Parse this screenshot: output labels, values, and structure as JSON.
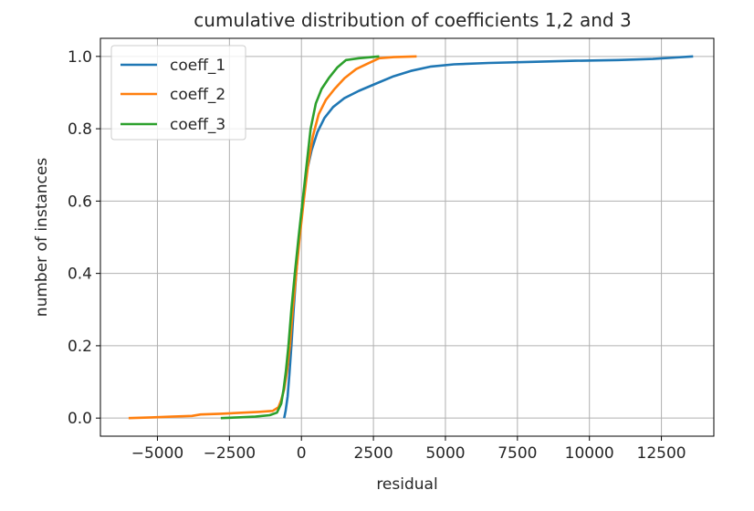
{
  "chart_data": {
    "type": "line",
    "title": "cumulative distribution of coefficients 1,2 and 3",
    "xlabel": "residual",
    "ylabel": "number of instances",
    "xlim": [
      -6980,
      14320
    ],
    "ylim": [
      -0.05,
      1.05
    ],
    "xticks": [
      -5000,
      -2500,
      0,
      2500,
      5000,
      7500,
      10000,
      12500
    ],
    "xtick_labels": [
      "−5000",
      "−2500",
      "0",
      "2500",
      "5000",
      "7500",
      "10000",
      "12500"
    ],
    "yticks": [
      0.0,
      0.2,
      0.4,
      0.6,
      0.8,
      1.0
    ],
    "ytick_labels": [
      "0.0",
      "0.2",
      "0.4",
      "0.6",
      "0.8",
      "1.0"
    ],
    "grid": true,
    "legend_position": "upper-left",
    "series": [
      {
        "name": "coeff_1",
        "color": "#1f77b4",
        "points": [
          [
            -600,
            0.0
          ],
          [
            -550,
            0.02
          ],
          [
            -480,
            0.06
          ],
          [
            -420,
            0.12
          ],
          [
            -350,
            0.2
          ],
          [
            -270,
            0.3
          ],
          [
            -180,
            0.4
          ],
          [
            -80,
            0.5
          ],
          [
            40,
            0.6
          ],
          [
            180,
            0.68
          ],
          [
            350,
            0.74
          ],
          [
            550,
            0.79
          ],
          [
            800,
            0.83
          ],
          [
            1100,
            0.86
          ],
          [
            1500,
            0.885
          ],
          [
            2000,
            0.905
          ],
          [
            2600,
            0.925
          ],
          [
            3200,
            0.945
          ],
          [
            3800,
            0.96
          ],
          [
            4500,
            0.972
          ],
          [
            5300,
            0.978
          ],
          [
            6500,
            0.982
          ],
          [
            8000,
            0.985
          ],
          [
            9500,
            0.988
          ],
          [
            11000,
            0.99
          ],
          [
            12200,
            0.993
          ],
          [
            13000,
            0.997
          ],
          [
            13600,
            1.0
          ]
        ]
      },
      {
        "name": "coeff_2",
        "color": "#ff7f0e",
        "points": [
          [
            -6000,
            0.0
          ],
          [
            -5200,
            0.002
          ],
          [
            -4500,
            0.004
          ],
          [
            -3800,
            0.006
          ],
          [
            -3500,
            0.01
          ],
          [
            -2800,
            0.012
          ],
          [
            -2000,
            0.015
          ],
          [
            -1500,
            0.017
          ],
          [
            -1000,
            0.02
          ],
          [
            -800,
            0.03
          ],
          [
            -700,
            0.05
          ],
          [
            -600,
            0.08
          ],
          [
            -500,
            0.13
          ],
          [
            -400,
            0.2
          ],
          [
            -300,
            0.3
          ],
          [
            -180,
            0.4
          ],
          [
            -60,
            0.5
          ],
          [
            80,
            0.6
          ],
          [
            230,
            0.7
          ],
          [
            400,
            0.78
          ],
          [
            600,
            0.84
          ],
          [
            850,
            0.88
          ],
          [
            1150,
            0.91
          ],
          [
            1500,
            0.94
          ],
          [
            1900,
            0.965
          ],
          [
            2300,
            0.98
          ],
          [
            2700,
            0.995
          ],
          [
            3200,
            0.998
          ],
          [
            4000,
            1.0
          ]
        ]
      },
      {
        "name": "coeff_3",
        "color": "#2ca02c",
        "points": [
          [
            -2800,
            0.0
          ],
          [
            -2200,
            0.002
          ],
          [
            -1600,
            0.004
          ],
          [
            -1100,
            0.008
          ],
          [
            -850,
            0.015
          ],
          [
            -700,
            0.04
          ],
          [
            -620,
            0.08
          ],
          [
            -540,
            0.13
          ],
          [
            -450,
            0.2
          ],
          [
            -350,
            0.3
          ],
          [
            -230,
            0.4
          ],
          [
            -100,
            0.5
          ],
          [
            40,
            0.6
          ],
          [
            180,
            0.7
          ],
          [
            320,
            0.8
          ],
          [
            500,
            0.87
          ],
          [
            700,
            0.91
          ],
          [
            950,
            0.94
          ],
          [
            1250,
            0.97
          ],
          [
            1550,
            0.99
          ],
          [
            2000,
            0.995
          ],
          [
            2700,
            1.0
          ]
        ]
      }
    ]
  }
}
